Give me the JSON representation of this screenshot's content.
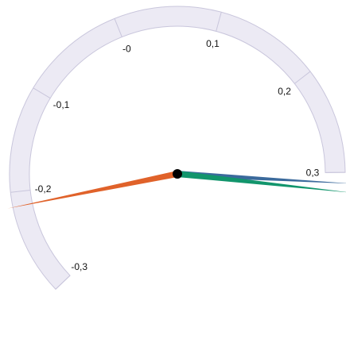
{
  "chart_data": {
    "type": "gauge",
    "min": -0.3,
    "max": 0.3,
    "tick_values": [
      -0.3,
      -0.2,
      -0.1,
      0,
      0.1,
      0.2,
      0.3
    ],
    "tick_labels": [
      "-0,3",
      "-0,2",
      "-0,1",
      "-0",
      "0,1",
      "0,2",
      "0,3"
    ],
    "needles": [
      {
        "value": 0.31,
        "color": "#3b6a9c"
      },
      {
        "value": 0.318,
        "color": "#12956c"
      },
      {
        "value": -0.214,
        "color": "#e0622a"
      }
    ],
    "band_color": "#eceaf4",
    "band_stroke": "#c9c6dc",
    "hub_color": "#000000"
  }
}
